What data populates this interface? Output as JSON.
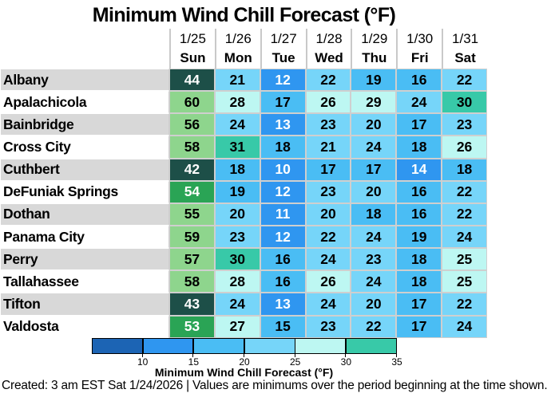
{
  "title": "Minimum Wind Chill Forecast (°F)",
  "footer": "Created: 3 am EST Sat 1/24/2026  |  Values are minimums over the period beginning at the time shown.",
  "chart_data": {
    "type": "heatmap",
    "title": "Minimum Wind Chill Forecast (°F)",
    "columns": [
      {
        "date": "1/25",
        "day": "Sun"
      },
      {
        "date": "1/26",
        "day": "Mon"
      },
      {
        "date": "1/27",
        "day": "Tue"
      },
      {
        "date": "1/28",
        "day": "Wed"
      },
      {
        "date": "1/29",
        "day": "Thu"
      },
      {
        "date": "1/30",
        "day": "Fri"
      },
      {
        "date": "1/31",
        "day": "Sat"
      }
    ],
    "rows": [
      {
        "name": "Albany",
        "values": [
          44,
          21,
          12,
          22,
          19,
          16,
          22
        ]
      },
      {
        "name": "Apalachicola",
        "values": [
          60,
          28,
          17,
          26,
          29,
          24,
          30
        ]
      },
      {
        "name": "Bainbridge",
        "values": [
          56,
          24,
          13,
          23,
          20,
          17,
          23
        ]
      },
      {
        "name": "Cross City",
        "values": [
          58,
          31,
          18,
          21,
          24,
          18,
          26
        ]
      },
      {
        "name": "Cuthbert",
        "values": [
          42,
          18,
          10,
          17,
          17,
          14,
          18
        ]
      },
      {
        "name": "DeFuniak Springs",
        "values": [
          54,
          19,
          12,
          23,
          20,
          16,
          22
        ]
      },
      {
        "name": "Dothan",
        "values": [
          55,
          20,
          11,
          20,
          18,
          16,
          22
        ]
      },
      {
        "name": "Panama City",
        "values": [
          59,
          23,
          12,
          22,
          24,
          19,
          24
        ]
      },
      {
        "name": "Perry",
        "values": [
          57,
          30,
          16,
          24,
          23,
          18,
          25
        ]
      },
      {
        "name": "Tallahassee",
        "values": [
          58,
          28,
          16,
          26,
          24,
          18,
          25
        ]
      },
      {
        "name": "Tifton",
        "values": [
          43,
          24,
          13,
          24,
          20,
          17,
          22
        ]
      },
      {
        "name": "Valdosta",
        "values": [
          53,
          27,
          15,
          23,
          22,
          17,
          24
        ]
      }
    ],
    "palette": [
      {
        "min": 10,
        "max": 14,
        "bg": "#2f96f0",
        "fg": "#ffffff"
      },
      {
        "min": 15,
        "max": 19,
        "bg": "#4abdf4",
        "fg": "#000000"
      },
      {
        "min": 20,
        "max": 24,
        "bg": "#76d5f9",
        "fg": "#000000"
      },
      {
        "min": 25,
        "max": 29,
        "bg": "#bdf7f2",
        "fg": "#000000"
      },
      {
        "min": 30,
        "max": 34,
        "bg": "#38c9a8",
        "fg": "#000000"
      },
      {
        "min": 40,
        "max": 49,
        "bg": "#1d4f48",
        "fg": "#ffffff"
      },
      {
        "min": 50,
        "max": 54,
        "bg": "#2aa455",
        "fg": "#ffffff"
      },
      {
        "min": 55,
        "max": 64,
        "bg": "#8ed58d",
        "fg": "#000000"
      }
    ],
    "colorbar": {
      "label": "Minimum Wind Chill Forecast (°F)",
      "ticks": [
        "10",
        "15",
        "20",
        "25",
        "30",
        "35"
      ],
      "segment_colors": [
        "#1c64b4",
        "#2f96f0",
        "#4abdf4",
        "#76d5f9",
        "#bdf7f2",
        "#38c9a8"
      ],
      "axis_range": [
        5,
        35
      ]
    },
    "grid": true,
    "legend_position": "bottom"
  }
}
